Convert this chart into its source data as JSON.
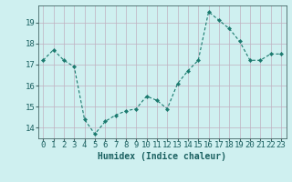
{
  "x": [
    0,
    1,
    2,
    3,
    4,
    5,
    6,
    7,
    8,
    9,
    10,
    11,
    12,
    13,
    14,
    15,
    16,
    17,
    18,
    19,
    20,
    21,
    22,
    23
  ],
  "y": [
    17.2,
    17.7,
    17.2,
    16.9,
    14.4,
    13.7,
    14.3,
    14.6,
    14.8,
    14.9,
    15.5,
    15.3,
    14.9,
    16.1,
    16.7,
    17.2,
    19.5,
    19.1,
    18.7,
    18.1,
    17.2,
    17.2,
    17.5,
    17.5
  ],
  "xlabel": "Humidex (Indice chaleur)",
  "xlim": [
    -0.5,
    23.5
  ],
  "ylim": [
    13.5,
    19.8
  ],
  "yticks": [
    14,
    15,
    16,
    17,
    18,
    19
  ],
  "xticks": [
    0,
    1,
    2,
    3,
    4,
    5,
    6,
    7,
    8,
    9,
    10,
    11,
    12,
    13,
    14,
    15,
    16,
    17,
    18,
    19,
    20,
    21,
    22,
    23
  ],
  "line_color": "#1a7a6e",
  "marker_color": "#1a7a6e",
  "bg_color": "#cff0f0",
  "grid_color": "#c0b0c0",
  "tick_label_color": "#1a6060",
  "xlabel_color": "#1a6060",
  "xlabel_fontsize": 7,
  "tick_fontsize": 6.5
}
